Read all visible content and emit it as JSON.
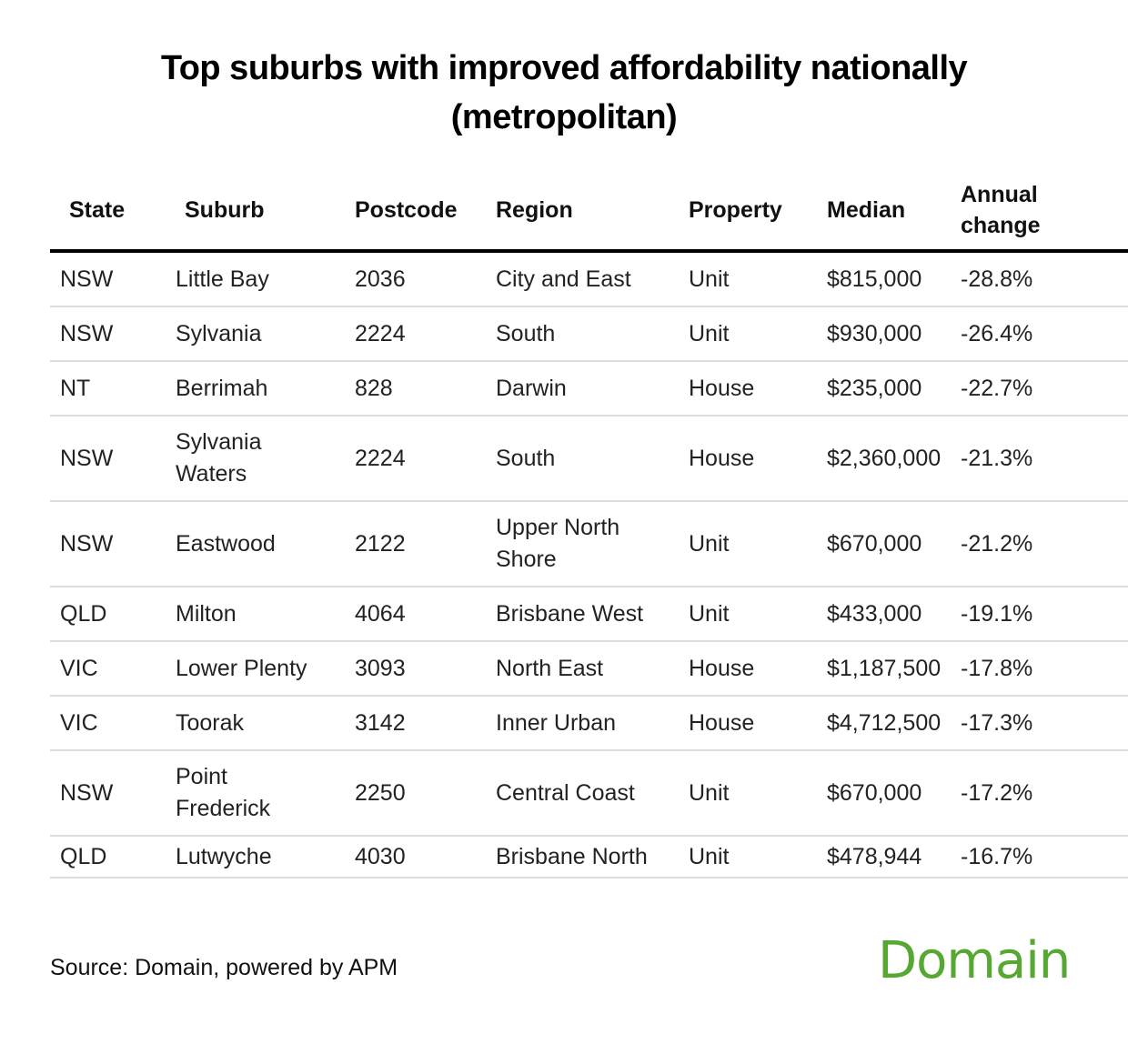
{
  "title": "Top suburbs with improved affordability nationally (metropolitan)",
  "title_line1": "Top suburbs with improved affordability nationally",
  "title_line2": "(metropolitan)",
  "table": {
    "headers": [
      "State",
      "Suburb",
      "Postcode",
      "Region",
      "Property",
      "Median",
      "Annual change"
    ],
    "rows": [
      [
        "NSW",
        "Little Bay",
        "2036",
        "City and East",
        "Unit",
        "$815,000",
        "-28.8%"
      ],
      [
        "NSW",
        "Sylvania",
        "2224",
        "South",
        "Unit",
        "$930,000",
        "-26.4%"
      ],
      [
        "NT",
        "Berrimah",
        "828",
        "Darwin",
        "House",
        "$235,000",
        "-22.7%"
      ],
      [
        "NSW",
        "Sylvania Waters",
        "2224",
        "South",
        "House",
        "$2,360,000",
        "-21.3%"
      ],
      [
        "NSW",
        "Eastwood",
        "2122",
        "Upper North Shore",
        "Unit",
        "$670,000",
        "-21.2%"
      ],
      [
        "QLD",
        "Milton",
        "4064",
        "Brisbane West",
        "Unit",
        "$433,000",
        "-19.1%"
      ],
      [
        "VIC",
        "Lower Plenty",
        "3093",
        "North East",
        "House",
        "$1,187,500",
        "-17.8%"
      ],
      [
        "VIC",
        "Toorak",
        "3142",
        "Inner Urban",
        "House",
        "$4,712,500",
        "-17.3%"
      ],
      [
        "NSW",
        "Point Frederick",
        "2250",
        "Central Coast",
        "Unit",
        "$670,000",
        "-17.2%"
      ],
      [
        "QLD",
        "Lutwyche",
        "4030",
        "Brisbane North",
        "Unit",
        "$478,944",
        "-16.7%"
      ]
    ]
  },
  "footer": {
    "source": "Source: Domain, powered by APM",
    "logo_text": "Domain",
    "logo_color": "#57a832"
  },
  "chart_data": {
    "type": "table",
    "title": "Top suburbs with improved affordability nationally (metropolitan)",
    "columns": [
      "State",
      "Suburb",
      "Postcode",
      "Region",
      "Property",
      "Median",
      "Annual change"
    ],
    "rows": [
      [
        "NSW",
        "Little Bay",
        "2036",
        "City and East",
        "Unit",
        815000,
        -28.8
      ],
      [
        "NSW",
        "Sylvania",
        "2224",
        "South",
        "Unit",
        930000,
        -26.4
      ],
      [
        "NT",
        "Berrimah",
        "828",
        "Darwin",
        "House",
        235000,
        -22.7
      ],
      [
        "NSW",
        "Sylvania Waters",
        "2224",
        "South",
        "House",
        2360000,
        -21.3
      ],
      [
        "NSW",
        "Eastwood",
        "2122",
        "Upper North Shore",
        "Unit",
        670000,
        -21.2
      ],
      [
        "QLD",
        "Milton",
        "4064",
        "Brisbane West",
        "Unit",
        433000,
        -19.1
      ],
      [
        "VIC",
        "Lower Plenty",
        "3093",
        "North East",
        "House",
        1187500,
        -17.8
      ],
      [
        "VIC",
        "Toorak",
        "3142",
        "Inner Urban",
        "House",
        4712500,
        -17.3
      ],
      [
        "NSW",
        "Point Frederick",
        "2250",
        "Central Coast",
        "Unit",
        670000,
        -17.2
      ],
      [
        "QLD",
        "Lutwyche",
        "4030",
        "Brisbane North",
        "Unit",
        478944,
        -16.7
      ]
    ],
    "source": "Source: Domain, powered by APM"
  }
}
